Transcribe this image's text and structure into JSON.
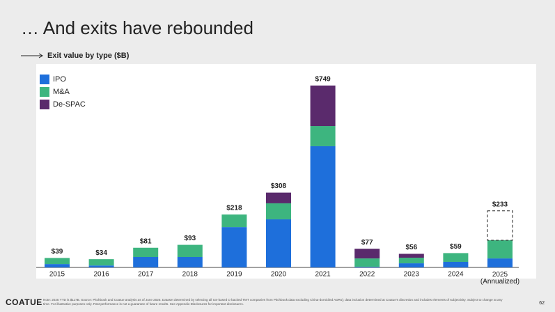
{
  "title": "… And exits have rebounded",
  "subtitle": "Exit value by type ($B)",
  "chart_data": {
    "type": "stacked_bar",
    "categories": [
      "2015",
      "2016",
      "2017",
      "2018",
      "2019",
      "2020",
      "2021",
      "2022",
      "2023",
      "2024",
      "2025 (Annualized)"
    ],
    "series": [
      {
        "name": "IPO",
        "color": "#1e6fdb",
        "values": [
          14,
          8,
          43,
          43,
          166,
          198,
          499,
          3,
          17,
          23,
          37
        ]
      },
      {
        "name": "M&A",
        "color": "#3db57f",
        "values": [
          25,
          26,
          38,
          50,
          52,
          66,
          83,
          34,
          23,
          36,
          75
        ]
      },
      {
        "name": "De-SPAC",
        "color": "#5a2a6c",
        "values": [
          0,
          0,
          0,
          0,
          0,
          44,
          167,
          40,
          16,
          0,
          0
        ]
      }
    ],
    "projected_values": [
      null,
      null,
      null,
      null,
      null,
      null,
      null,
      null,
      null,
      null,
      121
    ],
    "totals": {
      "values": [
        39,
        34,
        81,
        93,
        218,
        308,
        749,
        77,
        56,
        59,
        233
      ],
      "value_labels": [
        "$39",
        "$34",
        "$81",
        "$93",
        "$218",
        "$308",
        "$749",
        "$77",
        "$56",
        "$59",
        "$233"
      ]
    },
    "ylim": [
      0,
      800
    ],
    "legend": "top-left"
  },
  "footer": {
    "brand": "COATUE",
    "note": "Note: 2025 YTD is $117B. Source: Pitchbook and Coatue analysis as of June 2025. Dataset determined by selecting all US-based C-backed TMT companies from Pitchbook data excluding China-domiciled ADRs); data inclusion determined at Coatue's discretion and includes elements of subjectivity. Subject to change at any time. For illustrative purposes only. Past performance is not a guarantee of future results. See Appendix-Disclosures for important disclosures.",
    "page": "62"
  }
}
